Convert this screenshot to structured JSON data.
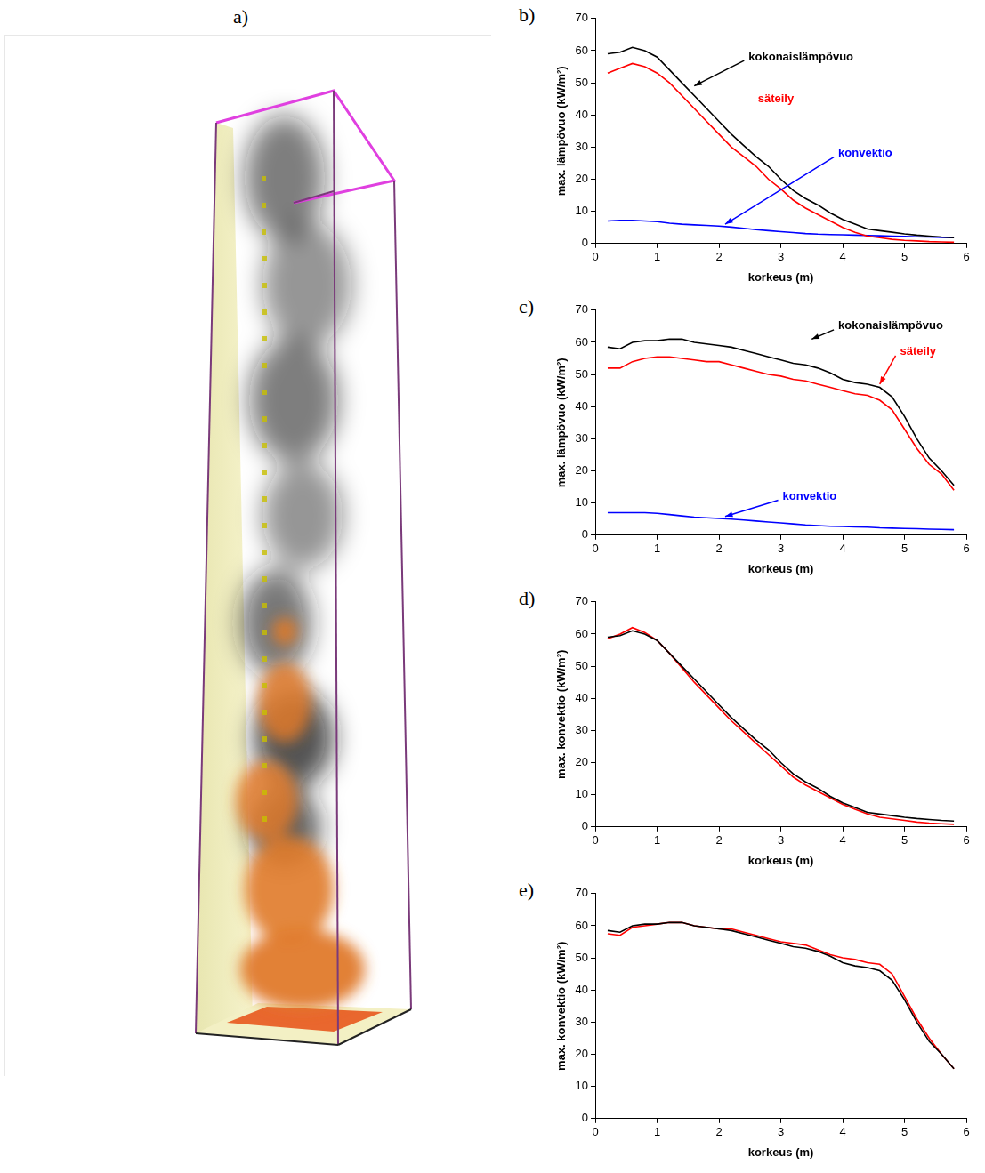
{
  "image": {
    "panel_label": "a)"
  },
  "chart_data": [
    {
      "panel_label": "b)",
      "type": "line",
      "x_label": "korkeus (m)",
      "y_label": "max. lämpövuo (kW/m²)",
      "x": [
        0.2,
        0.4,
        0.6,
        0.8,
        1.0,
        1.2,
        1.4,
        1.6,
        1.8,
        2.0,
        2.2,
        2.4,
        2.6,
        2.8,
        3.0,
        3.2,
        3.4,
        3.6,
        3.8,
        4.0,
        4.2,
        4.4,
        4.6,
        4.8,
        5.0,
        5.2,
        5.4,
        5.6,
        5.8
      ],
      "series": [
        {
          "name": "kokonaislämpövuo",
          "color": "#000000",
          "values": [
            59,
            59.5,
            61,
            60,
            58,
            54,
            50,
            46,
            42,
            38,
            34,
            30.5,
            27,
            24,
            20,
            16.5,
            14,
            12,
            9.5,
            7.5,
            6,
            4.5,
            4,
            3.5,
            3,
            2.6,
            2.3,
            2,
            1.8
          ]
        },
        {
          "name": "säteily",
          "color": "#ff0000",
          "values": [
            53,
            54.5,
            56,
            55,
            53,
            50,
            46,
            42,
            38,
            34,
            30,
            27,
            24,
            20,
            17,
            13.5,
            11,
            9,
            7,
            5,
            3.5,
            2.3,
            1.8,
            1.3,
            1,
            0.8,
            0.6,
            0.5,
            0.4
          ]
        },
        {
          "name": "konvektio",
          "color": "#0000ff",
          "values": [
            7,
            7.2,
            7.2,
            7,
            6.8,
            6.3,
            6,
            5.8,
            5.6,
            5.4,
            5.1,
            4.7,
            4.3,
            4,
            3.7,
            3.4,
            3.1,
            2.9,
            2.8,
            2.7,
            2.6,
            2.5,
            2.4,
            2.3,
            2.2,
            2.1,
            2,
            1.9,
            1.8
          ]
        }
      ],
      "xlim": [
        0,
        6
      ],
      "xticks": [
        0,
        1,
        2,
        3,
        4,
        5,
        6
      ],
      "ylim": [
        0,
        70
      ],
      "yticks": [
        0,
        10,
        20,
        30,
        40,
        50,
        60,
        70
      ],
      "grid": false
    },
    {
      "panel_label": "c)",
      "type": "line",
      "x_label": "korkeus (m)",
      "y_label": "max. lämpövuo (kW/m²)",
      "x": [
        0.2,
        0.4,
        0.6,
        0.8,
        1.0,
        1.2,
        1.4,
        1.6,
        1.8,
        2.0,
        2.2,
        2.4,
        2.6,
        2.8,
        3.0,
        3.2,
        3.4,
        3.6,
        3.8,
        4.0,
        4.2,
        4.4,
        4.6,
        4.8,
        5.0,
        5.2,
        5.4,
        5.6,
        5.8
      ],
      "series": [
        {
          "name": "kokonaislämpövuo",
          "color": "#000000",
          "values": [
            58.5,
            58,
            60,
            60.5,
            60.5,
            61,
            61,
            60,
            59.5,
            59,
            58.5,
            57.5,
            56.5,
            55.5,
            54.5,
            53.5,
            53,
            52,
            50.5,
            48.5,
            47.5,
            47,
            46,
            43,
            37,
            30,
            24,
            20,
            15.5
          ]
        },
        {
          "name": "säteily",
          "color": "#ff0000",
          "values": [
            52,
            52,
            54,
            55,
            55.5,
            55.5,
            55,
            54.5,
            54,
            54,
            53,
            52,
            51,
            50,
            49.5,
            48.5,
            48,
            47,
            46,
            45,
            44,
            43.5,
            42,
            39,
            33,
            27,
            22,
            19,
            14
          ]
        },
        {
          "name": "konvektio",
          "color": "#0000ff",
          "values": [
            7,
            7,
            7,
            7,
            6.8,
            6.4,
            6,
            5.6,
            5.4,
            5.2,
            5,
            4.7,
            4.4,
            4.1,
            3.8,
            3.5,
            3.2,
            3,
            2.8,
            2.7,
            2.6,
            2.5,
            2.3,
            2.2,
            2.1,
            2,
            1.9,
            1.8,
            1.7
          ]
        }
      ],
      "xlim": [
        0,
        6
      ],
      "xticks": [
        0,
        1,
        2,
        3,
        4,
        5,
        6
      ],
      "ylim": [
        0,
        70
      ],
      "yticks": [
        0,
        10,
        20,
        30,
        40,
        50,
        60,
        70
      ],
      "grid": false
    },
    {
      "panel_label": "d)",
      "type": "line",
      "x_label": "korkeus (m)",
      "y_label": "max. konvektio (kW/m²)",
      "x": [
        0.2,
        0.4,
        0.6,
        0.8,
        1.0,
        1.2,
        1.4,
        1.6,
        1.8,
        2.0,
        2.2,
        2.4,
        2.6,
        2.8,
        3.0,
        3.2,
        3.4,
        3.6,
        3.8,
        4.0,
        4.2,
        4.4,
        4.6,
        4.8,
        5.0,
        5.2,
        5.4,
        5.6,
        5.8
      ],
      "series": [
        {
          "color": "#000000",
          "values": [
            59,
            59.5,
            61,
            60,
            58,
            54,
            50,
            46,
            42,
            38,
            34,
            30.5,
            27,
            24,
            20,
            16.5,
            14,
            12,
            9.5,
            7.5,
            6,
            4.5,
            4,
            3.5,
            3,
            2.6,
            2.3,
            2,
            1.8
          ]
        },
        {
          "color": "#ff0000",
          "values": [
            58.5,
            60,
            62,
            60.5,
            58,
            54,
            49.5,
            45,
            41,
            37,
            33,
            29.5,
            26,
            22.5,
            19,
            15.5,
            13,
            11,
            9,
            7,
            5.5,
            4,
            3,
            2.5,
            2,
            1.5,
            1.2,
            1,
            0.8
          ]
        }
      ],
      "xlim": [
        0,
        6
      ],
      "xticks": [
        0,
        1,
        2,
        3,
        4,
        5,
        6
      ],
      "ylim": [
        0,
        70
      ],
      "yticks": [
        0,
        10,
        20,
        30,
        40,
        50,
        60,
        70
      ],
      "grid": false
    },
    {
      "panel_label": "e)",
      "type": "line",
      "x_label": "korkeus (m)",
      "y_label": "max. konvektio (kW/m²)",
      "x": [
        0.2,
        0.4,
        0.6,
        0.8,
        1.0,
        1.2,
        1.4,
        1.6,
        1.8,
        2.0,
        2.2,
        2.4,
        2.6,
        2.8,
        3.0,
        3.2,
        3.4,
        3.6,
        3.8,
        4.0,
        4.2,
        4.4,
        4.6,
        4.8,
        5.0,
        5.2,
        5.4,
        5.6,
        5.8
      ],
      "series": [
        {
          "color": "#000000",
          "values": [
            58.5,
            58,
            60,
            60.5,
            60.5,
            61,
            61,
            60,
            59.5,
            59,
            58.5,
            57.5,
            56.5,
            55.5,
            54.5,
            53.5,
            53,
            52,
            50.5,
            48.5,
            47.5,
            47,
            46,
            43,
            37,
            30,
            24,
            20,
            15.5
          ]
        },
        {
          "color": "#ff0000",
          "values": [
            57.5,
            57,
            59.5,
            60,
            60.5,
            61,
            61,
            60,
            59.5,
            59,
            59,
            58,
            57,
            56,
            55,
            54.5,
            54,
            52.5,
            51,
            50,
            49.5,
            48.5,
            48,
            45,
            38,
            31,
            25,
            20,
            15.5
          ]
        }
      ],
      "xlim": [
        0,
        6
      ],
      "xticks": [
        0,
        1,
        2,
        3,
        4,
        5,
        6
      ],
      "ylim": [
        0,
        70
      ],
      "yticks": [
        0,
        10,
        20,
        30,
        40,
        50,
        60,
        70
      ],
      "grid": false
    }
  ]
}
